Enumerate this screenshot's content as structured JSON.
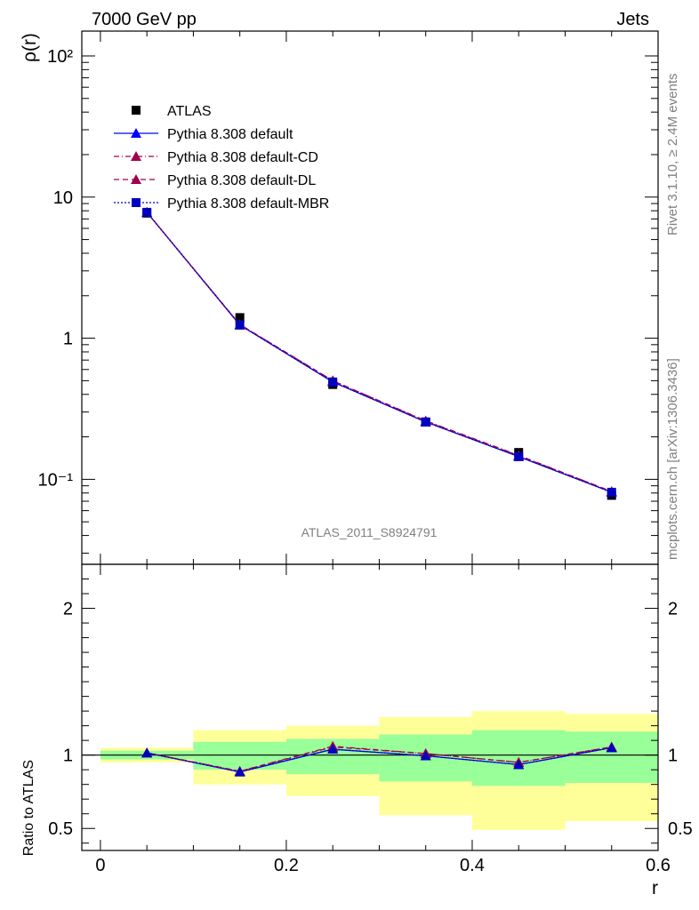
{
  "header": {
    "left": "7000 GeV pp",
    "right": "Jets"
  },
  "side_labels": {
    "rivet": "Rivet 3.1.10, ≥ 2.4M events",
    "mcplots": "mcplots.cern.ch [arXiv:1306.3436]"
  },
  "watermark": "ATLAS_2011_S8924791",
  "colors": {
    "atlas": "#000000",
    "default": "#0000ff",
    "default_cd": "#a0004c",
    "default_dl": "#a0004c",
    "default_mbr": "#0000c0",
    "band_inner": "#99ff99",
    "band_outer": "#ffff99"
  },
  "chart_data": [
    {
      "type": "line",
      "panel": "main",
      "ylabel": "ρ(r)",
      "yscale": "log",
      "xlim": [
        -0.02,
        0.6
      ],
      "ylim": [
        0.025,
        150
      ],
      "x": [
        0.05,
        0.15,
        0.25,
        0.35,
        0.45,
        0.55
      ],
      "ytick_labels": [
        "10⁻¹",
        "1",
        "10",
        "10²"
      ],
      "legend_position": "top-left",
      "series": [
        {
          "name": "ATLAS",
          "style": "markers",
          "values": [
            7.7,
            1.4,
            0.47,
            0.255,
            0.155,
            0.077
          ]
        },
        {
          "name": "Pythia 8.308 default",
          "style": "solid",
          "values": [
            7.8,
            1.24,
            0.49,
            0.255,
            0.145,
            0.081
          ]
        },
        {
          "name": "Pythia 8.308 default-CD",
          "style": "dashdot",
          "values": [
            7.8,
            1.25,
            0.5,
            0.26,
            0.148,
            0.082
          ]
        },
        {
          "name": "Pythia 8.308 default-DL",
          "style": "dashed",
          "values": [
            7.8,
            1.25,
            0.5,
            0.258,
            0.147,
            0.082
          ]
        },
        {
          "name": "Pythia 8.308 default-MBR",
          "style": "dotted",
          "values": [
            7.8,
            1.24,
            0.49,
            0.255,
            0.145,
            0.081
          ]
        }
      ]
    },
    {
      "type": "line",
      "panel": "ratio",
      "ylabel": "Ratio to ATLAS",
      "xlabel": "r",
      "xlim": [
        -0.02,
        0.6
      ],
      "ylim": [
        0.35,
        2.3
      ],
      "xtick_labels": [
        "0",
        "0.2",
        "0.4",
        "0.6"
      ],
      "ytick_labels": [
        "0.5",
        "1",
        "2"
      ],
      "bands": [
        {
          "x0": 0.0,
          "x1": 0.1,
          "inner": [
            0.97,
            1.03
          ],
          "outer": [
            0.95,
            1.05
          ]
        },
        {
          "x0": 0.1,
          "x1": 0.2,
          "inner": [
            0.9,
            1.09
          ],
          "outer": [
            0.8,
            1.17
          ]
        },
        {
          "x0": 0.2,
          "x1": 0.3,
          "inner": [
            0.87,
            1.11
          ],
          "outer": [
            0.72,
            1.2
          ]
        },
        {
          "x0": 0.3,
          "x1": 0.4,
          "inner": [
            0.82,
            1.14
          ],
          "outer": [
            0.59,
            1.26
          ]
        },
        {
          "x0": 0.4,
          "x1": 0.5,
          "inner": [
            0.79,
            1.17
          ],
          "outer": [
            0.49,
            1.3
          ]
        },
        {
          "x0": 0.5,
          "x1": 0.6,
          "inner": [
            0.81,
            1.16
          ],
          "outer": [
            0.55,
            1.28
          ]
        }
      ],
      "x": [
        0.05,
        0.15,
        0.25,
        0.35,
        0.45,
        0.55
      ],
      "series": [
        {
          "name": "Pythia 8.308 default",
          "style": "solid",
          "values": [
            1.015,
            0.885,
            1.04,
            0.995,
            0.935,
            1.05
          ]
        },
        {
          "name": "Pythia 8.308 default-CD",
          "style": "dashdot",
          "values": [
            1.015,
            0.89,
            1.06,
            1.01,
            0.95,
            1.055
          ]
        },
        {
          "name": "Pythia 8.308 default-DL",
          "style": "dashed",
          "values": [
            1.015,
            0.89,
            1.055,
            1.01,
            0.95,
            1.055
          ]
        },
        {
          "name": "Pythia 8.308 default-MBR",
          "style": "dotted",
          "values": [
            1.015,
            0.885,
            1.04,
            0.995,
            0.935,
            1.05
          ]
        }
      ]
    }
  ]
}
